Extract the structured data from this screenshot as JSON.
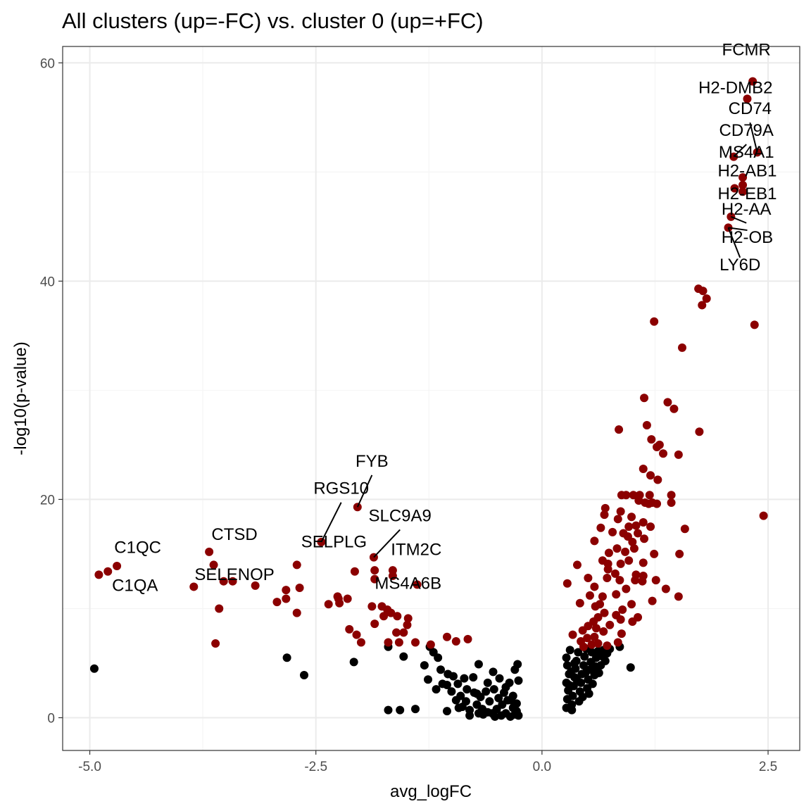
{
  "chart_data": {
    "type": "scatter",
    "title": "All clusters (up=-FC) vs. cluster 0 (up=+FC)",
    "xlabel": "avg_logFC",
    "ylabel": "-log10(p-value)",
    "xlim": [
      -5.3,
      2.85
    ],
    "ylim": [
      -3,
      61.5
    ],
    "xticks": [
      -5.0,
      -2.5,
      0.0,
      2.5
    ],
    "xtick_labels": [
      "-5.0",
      "-2.5",
      "0.0",
      "2.5"
    ],
    "yticks": [
      0,
      20,
      40,
      60
    ],
    "ytick_labels": [
      "0",
      "20",
      "40",
      "60"
    ],
    "grid": true,
    "legend": "none",
    "colors": {
      "significant": "#8b0000",
      "not_significant": "#000000"
    },
    "significant": [
      [
        2.33,
        58.3
      ],
      [
        2.27,
        56.7
      ],
      [
        2.38,
        51.8
      ],
      [
        2.12,
        51.4
      ],
      [
        2.22,
        49.5
      ],
      [
        2.22,
        48.8
      ],
      [
        2.13,
        48.5
      ],
      [
        2.22,
        48.2
      ],
      [
        2.09,
        45.9
      ],
      [
        2.06,
        44.9
      ],
      [
        1.73,
        39.3
      ],
      [
        1.78,
        39.1
      ],
      [
        1.82,
        38.4
      ],
      [
        1.77,
        37.8
      ],
      [
        1.24,
        36.3
      ],
      [
        2.35,
        36.0
      ],
      [
        1.55,
        33.9
      ],
      [
        1.13,
        29.3
      ],
      [
        1.39,
        28.9
      ],
      [
        1.46,
        28.3
      ],
      [
        1.16,
        26.8
      ],
      [
        0.85,
        26.4
      ],
      [
        1.74,
        26.2
      ],
      [
        1.21,
        25.5
      ],
      [
        1.3,
        25.0
      ],
      [
        1.27,
        24.8
      ],
      [
        1.34,
        24.2
      ],
      [
        1.51,
        24.1
      ],
      [
        1.12,
        22.8
      ],
      [
        1.2,
        22.2
      ],
      [
        1.28,
        21.8
      ],
      [
        2.45,
        18.5
      ],
      [
        0.88,
        20.4
      ],
      [
        0.93,
        20.4
      ],
      [
        1.01,
        20.4
      ],
      [
        1.08,
        20.4
      ],
      [
        1.19,
        20.4
      ],
      [
        1.43,
        20.4
      ],
      [
        1.07,
        19.9
      ],
      [
        1.14,
        19.7
      ],
      [
        1.18,
        19.6
      ],
      [
        1.22,
        19.7
      ],
      [
        1.27,
        19.6
      ],
      [
        1.43,
        19.7
      ],
      [
        0.7,
        19.2
      ],
      [
        0.87,
        18.9
      ],
      [
        0.69,
        18.6
      ],
      [
        0.99,
        18.4
      ],
      [
        0.84,
        18.2
      ],
      [
        1.12,
        17.9
      ],
      [
        0.96,
        17.5
      ],
      [
        1.04,
        17.6
      ],
      [
        1.2,
        17.5
      ],
      [
        1.58,
        17.3
      ],
      [
        0.65,
        17.4
      ],
      [
        0.78,
        17.0
      ],
      [
        0.9,
        16.9
      ],
      [
        1.06,
        16.9
      ],
      [
        0.95,
        16.6
      ],
      [
        1.13,
        16.4
      ],
      [
        0.58,
        16.2
      ],
      [
        1.0,
        16.1
      ],
      [
        0.83,
        15.5
      ],
      [
        0.92,
        15.2
      ],
      [
        1.02,
        15.5
      ],
      [
        0.74,
        15.1
      ],
      [
        1.24,
        15.0
      ],
      [
        1.52,
        15.0
      ],
      [
        0.67,
        14.4
      ],
      [
        0.73,
        14.1
      ],
      [
        0.87,
        14.1
      ],
      [
        0.96,
        14.4
      ],
      [
        0.39,
        14.0
      ],
      [
        1.12,
        14.2
      ],
      [
        0.73,
        13.6
      ],
      [
        0.81,
        13.2
      ],
      [
        1.04,
        13.1
      ],
      [
        1.12,
        13.0
      ],
      [
        0.51,
        12.8
      ],
      [
        0.72,
        12.8
      ],
      [
        0.86,
        12.6
      ],
      [
        1.03,
        12.6
      ],
      [
        1.11,
        12.5
      ],
      [
        1.26,
        12.6
      ],
      [
        0.28,
        12.3
      ],
      [
        0.58,
        12.0
      ],
      [
        1.37,
        11.8
      ],
      [
        0.93,
        11.8
      ],
      [
        1.51,
        11.1
      ],
      [
        0.53,
        11.2
      ],
      [
        0.67,
        11.1
      ],
      [
        0.82,
        11.3
      ],
      [
        1.22,
        10.7
      ],
      [
        0.42,
        10.5
      ],
      [
        0.64,
        10.4
      ],
      [
        0.99,
        10.4
      ],
      [
        0.59,
        10.2
      ],
      [
        0.89,
        9.9
      ],
      [
        0.69,
        9.6
      ],
      [
        0.82,
        9.4
      ],
      [
        1.06,
        9.2
      ],
      [
        0.62,
        9.2
      ],
      [
        0.87,
        9.0
      ],
      [
        0.57,
        8.8
      ],
      [
        1.0,
        8.8
      ],
      [
        0.75,
        8.5
      ],
      [
        0.51,
        8.4
      ],
      [
        0.6,
        8.2
      ],
      [
        0.45,
        8.0
      ],
      [
        0.68,
        7.9
      ],
      [
        0.88,
        7.7
      ],
      [
        0.34,
        7.6
      ],
      [
        0.58,
        7.4
      ],
      [
        0.5,
        7.3
      ],
      [
        0.43,
        7.0
      ],
      [
        0.84,
        6.9
      ],
      [
        0.55,
        6.7
      ],
      [
        0.62,
        6.8
      ],
      [
        0.72,
        6.6
      ],
      [
        0.46,
        6.5
      ],
      [
        -1.05,
        7.4
      ],
      [
        -0.95,
        7.0
      ],
      [
        -0.82,
        7.2
      ],
      [
        -1.23,
        6.7
      ],
      [
        -1.4,
        6.9
      ],
      [
        -2.04,
        19.3
      ],
      [
        -2.44,
        16.1
      ],
      [
        -1.86,
        14.7
      ],
      [
        -1.85,
        13.5
      ],
      [
        -1.65,
        13.5
      ],
      [
        -1.65,
        13.0
      ],
      [
        -1.85,
        12.7
      ],
      [
        -1.38,
        12.2
      ],
      [
        -1.88,
        10.2
      ],
      [
        -1.77,
        10.2
      ],
      [
        -1.71,
        9.9
      ],
      [
        -1.67,
        9.6
      ],
      [
        -1.6,
        9.3
      ],
      [
        -1.85,
        8.6
      ],
      [
        -1.75,
        9.3
      ],
      [
        -1.48,
        9.1
      ],
      [
        -1.49,
        8.5
      ],
      [
        -1.61,
        7.8
      ],
      [
        -1.53,
        7.8
      ],
      [
        -1.58,
        6.9
      ],
      [
        -2.07,
        13.4
      ],
      [
        -2.24,
        10.5
      ],
      [
        -2.36,
        10.4
      ],
      [
        -2.26,
        11.1
      ],
      [
        -2.25,
        10.9
      ],
      [
        -2.15,
        10.9
      ],
      [
        -2.05,
        7.6
      ],
      [
        -1.7,
        6.9
      ],
      [
        -2.0,
        6.9
      ],
      [
        -2.13,
        8.1
      ],
      [
        -3.68,
        15.2
      ],
      [
        -3.63,
        14.0
      ],
      [
        -3.52,
        12.5
      ],
      [
        -3.42,
        12.5
      ],
      [
        -3.17,
        12.1
      ],
      [
        -2.83,
        11.7
      ],
      [
        -2.93,
        10.6
      ],
      [
        -2.83,
        10.9
      ],
      [
        -2.71,
        14.0
      ],
      [
        -2.68,
        11.9
      ],
      [
        -2.71,
        9.6
      ],
      [
        -3.85,
        12.0
      ],
      [
        -3.57,
        10.0
      ],
      [
        -3.61,
        6.8
      ],
      [
        -4.7,
        13.9
      ],
      [
        -4.8,
        13.4
      ],
      [
        -4.9,
        13.1
      ]
    ],
    "not_significant": [
      [
        -4.95,
        4.5
      ],
      [
        -2.82,
        5.5
      ],
      [
        -2.63,
        3.9
      ],
      [
        -2.08,
        5.1
      ],
      [
        -1.7,
        6.5
      ],
      [
        -1.53,
        5.6
      ],
      [
        -1.7,
        0.7
      ],
      [
        -1.57,
        0.7
      ],
      [
        -1.4,
        0.8
      ],
      [
        -1.24,
        6.5
      ],
      [
        -1.2,
        6.0
      ],
      [
        -1.15,
        5.5
      ],
      [
        -1.3,
        4.8
      ],
      [
        -1.26,
        3.5
      ],
      [
        -1.12,
        4.4
      ],
      [
        -1.04,
        4.0
      ],
      [
        -0.98,
        3.8
      ],
      [
        -0.93,
        3.1
      ],
      [
        -0.86,
        3.6
      ],
      [
        -0.7,
        4.9
      ],
      [
        -0.76,
        3.7
      ],
      [
        -0.83,
        2.6
      ],
      [
        -0.72,
        2.2
      ],
      [
        -0.6,
        3.2
      ],
      [
        -0.54,
        4.2
      ],
      [
        -0.47,
        3.6
      ],
      [
        -0.36,
        3.2
      ],
      [
        -0.3,
        4.4
      ],
      [
        -0.27,
        4.9
      ],
      [
        -0.26,
        3.4
      ],
      [
        -0.32,
        2.0
      ],
      [
        -0.38,
        1.6
      ],
      [
        -0.44,
        1.2
      ],
      [
        -0.5,
        0.8
      ],
      [
        -0.55,
        0.4
      ],
      [
        -0.6,
        0.5
      ],
      [
        -0.66,
        0.8
      ],
      [
        -0.72,
        1.2
      ],
      [
        -0.8,
        0.7
      ],
      [
        -0.88,
        1.0
      ],
      [
        -0.95,
        1.6
      ],
      [
        -1.0,
        2.4
      ],
      [
        -1.05,
        3.0
      ],
      [
        -1.1,
        3.1
      ],
      [
        -1.17,
        2.6
      ],
      [
        -0.65,
        0.3
      ],
      [
        -0.45,
        0.2
      ],
      [
        -0.35,
        0.1
      ],
      [
        -0.3,
        0.3
      ],
      [
        -0.28,
        0.6
      ],
      [
        -0.32,
        0.9
      ],
      [
        -0.4,
        0.4
      ],
      [
        -0.52,
        0.1
      ],
      [
        -0.58,
        1.5
      ],
      [
        -0.68,
        1.9
      ],
      [
        -0.75,
        2.3
      ],
      [
        -0.84,
        1.5
      ],
      [
        -0.9,
        2.0
      ],
      [
        -0.42,
        2.3
      ],
      [
        -0.48,
        1.8
      ],
      [
        -0.53,
        2.6
      ],
      [
        -0.62,
        2.4
      ],
      [
        -0.28,
        1.3
      ],
      [
        -0.26,
        0.2
      ],
      [
        -0.34,
        1.6
      ],
      [
        -1.05,
        0.6
      ],
      [
        -0.92,
        0.9
      ],
      [
        -0.8,
        0.2
      ],
      [
        -0.7,
        0.4
      ],
      [
        -0.4,
        2.8
      ],
      [
        0.27,
        0.9
      ],
      [
        0.28,
        1.7
      ],
      [
        0.29,
        2.5
      ],
      [
        0.27,
        3.2
      ],
      [
        0.3,
        4.0
      ],
      [
        0.28,
        4.8
      ],
      [
        0.27,
        5.5
      ],
      [
        0.31,
        6.2
      ],
      [
        0.33,
        1.2
      ],
      [
        0.34,
        2.0
      ],
      [
        0.35,
        2.9
      ],
      [
        0.36,
        3.7
      ],
      [
        0.37,
        4.5
      ],
      [
        0.38,
        5.2
      ],
      [
        0.4,
        6.0
      ],
      [
        0.41,
        1.5
      ],
      [
        0.42,
        2.4
      ],
      [
        0.43,
        3.2
      ],
      [
        0.44,
        4.0
      ],
      [
        0.46,
        4.8
      ],
      [
        0.47,
        5.6
      ],
      [
        0.49,
        6.3
      ],
      [
        0.5,
        2.7
      ],
      [
        0.51,
        3.5
      ],
      [
        0.53,
        4.4
      ],
      [
        0.54,
        5.1
      ],
      [
        0.55,
        6.0
      ],
      [
        0.56,
        3.1
      ],
      [
        0.58,
        3.9
      ],
      [
        0.59,
        4.7
      ],
      [
        0.6,
        5.5
      ],
      [
        0.62,
        6.1
      ],
      [
        0.63,
        4.1
      ],
      [
        0.65,
        4.8
      ],
      [
        0.67,
        5.6
      ],
      [
        0.68,
        6.2
      ],
      [
        0.7,
        5.2
      ],
      [
        0.72,
        5.9
      ],
      [
        0.75,
        6.3
      ],
      [
        0.33,
        0.7
      ],
      [
        0.39,
        3.4
      ],
      [
        0.45,
        1.9
      ],
      [
        0.52,
        2.2
      ],
      [
        0.61,
        4.3
      ],
      [
        0.86,
        6.5
      ],
      [
        0.98,
        4.6
      ],
      [
        0.3,
        3.0
      ],
      [
        0.32,
        4.2
      ],
      [
        0.36,
        5.0
      ],
      [
        0.48,
        4.1
      ]
    ],
    "labels": [
      {
        "text": "FCMR",
        "x": 2.33,
        "y": 58.3,
        "lx": 2.26,
        "ly": 60.7,
        "leader": false
      },
      {
        "text": "H2-DMB2",
        "x": 2.27,
        "y": 56.7,
        "lx": 2.14,
        "ly": 57.2,
        "leader": false
      },
      {
        "text": "CD74",
        "x": 2.38,
        "y": 51.8,
        "lx": 2.3,
        "ly": 55.3,
        "leader": true
      },
      {
        "text": "CD79A",
        "x": 2.12,
        "y": 51.4,
        "lx": 2.26,
        "ly": 53.3,
        "leader": true
      },
      {
        "text": "MS4A1",
        "x": 2.22,
        "y": 49.5,
        "lx": 2.26,
        "ly": 51.3,
        "leader": false
      },
      {
        "text": "H2-AB1",
        "x": 2.22,
        "y": 48.8,
        "lx": 2.27,
        "ly": 49.6,
        "leader": false
      },
      {
        "text": "H2-EB1",
        "x": 2.13,
        "y": 48.5,
        "lx": 2.27,
        "ly": 47.5,
        "leader": false
      },
      {
        "text": "H2-AA",
        "x": 2.09,
        "y": 45.9,
        "lx": 2.26,
        "ly": 46.1,
        "leader": true
      },
      {
        "text": "H2-OB",
        "x": 2.06,
        "y": 44.9,
        "lx": 2.27,
        "ly": 43.5,
        "leader": true
      },
      {
        "text": "LY6D",
        "x": 2.06,
        "y": 44.9,
        "lx": 2.19,
        "ly": 41.0,
        "leader": true
      },
      {
        "text": "FYB",
        "x": -2.04,
        "y": 19.3,
        "lx": -1.88,
        "ly": 23.0,
        "leader": true
      },
      {
        "text": "RGS10",
        "x": -2.44,
        "y": 16.1,
        "lx": -2.22,
        "ly": 20.5,
        "leader": true
      },
      {
        "text": "SLC9A9",
        "x": -1.86,
        "y": 14.7,
        "lx": -1.57,
        "ly": 18.0,
        "leader": true
      },
      {
        "text": "SELPLG",
        "x": -2.44,
        "y": 16.1,
        "lx": -2.3,
        "ly": 15.6,
        "leader": false
      },
      {
        "text": "ITM2C",
        "x": -1.65,
        "y": 13.5,
        "lx": -1.39,
        "ly": 14.9,
        "leader": false
      },
      {
        "text": "CTSD",
        "x": -3.68,
        "y": 15.2,
        "lx": -3.4,
        "ly": 16.3,
        "leader": false
      },
      {
        "text": "C1QC",
        "x": -4.7,
        "y": 13.9,
        "lx": -4.47,
        "ly": 15.1,
        "leader": false
      },
      {
        "text": "SELENOP",
        "x": -3.52,
        "y": 12.5,
        "lx": -3.4,
        "ly": 12.6,
        "leader": false
      },
      {
        "text": "MS4A6B",
        "x": -1.38,
        "y": 12.2,
        "lx": -1.48,
        "ly": 11.8,
        "leader": false
      },
      {
        "text": "C1QA",
        "x": -4.9,
        "y": 13.1,
        "lx": -4.5,
        "ly": 11.6,
        "leader": false
      }
    ]
  }
}
